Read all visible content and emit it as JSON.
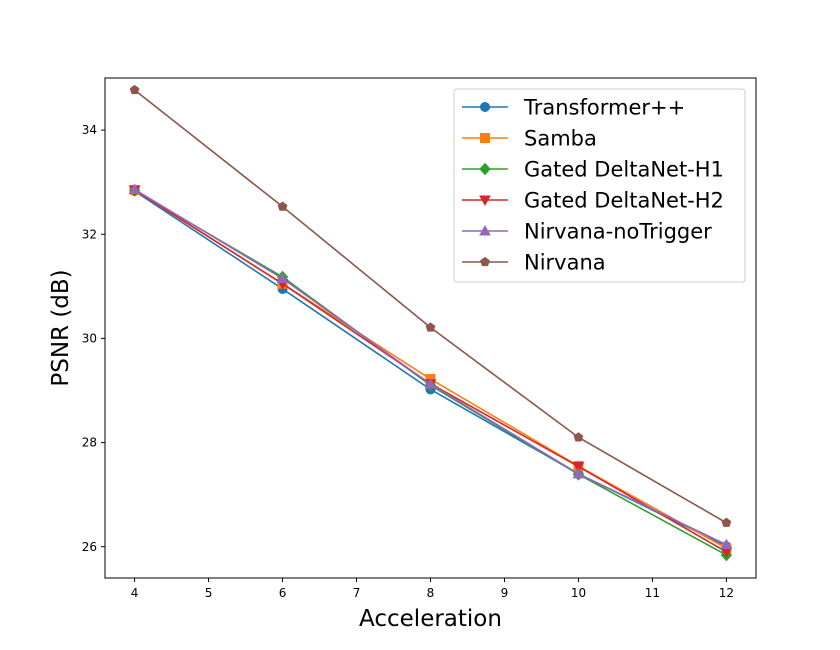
{
  "chart_data": {
    "type": "line",
    "xlabel": "Acceleration",
    "ylabel": "PSNR (dB)",
    "xlim": [
      3.6,
      12.4
    ],
    "ylim": [
      25.4,
      35.0
    ],
    "xticks": [
      4,
      5,
      6,
      7,
      8,
      9,
      10,
      11,
      12
    ],
    "yticks": [
      26,
      28,
      30,
      32,
      34
    ],
    "grid": false,
    "legend_placement": "top-right",
    "x": [
      4,
      6,
      8,
      10,
      12
    ],
    "series": [
      {
        "name": "Transformer++",
        "color": "#1f77b4",
        "marker": "circle",
        "values": [
          32.83,
          30.95,
          29.02,
          27.4,
          26.01
        ]
      },
      {
        "name": "Samba",
        "color": "#ff7f0e",
        "marker": "square",
        "values": [
          32.85,
          31.05,
          29.22,
          27.55,
          25.97
        ]
      },
      {
        "name": "Gated DeltaNet-H1",
        "color": "#2ca02c",
        "marker": "diamond",
        "values": [
          32.84,
          31.18,
          29.1,
          27.39,
          25.84
        ]
      },
      {
        "name": "Gated DeltaNet-H2",
        "color": "#d62728",
        "marker": "triangle-down",
        "values": [
          32.85,
          31.05,
          29.13,
          27.54,
          25.9
        ]
      },
      {
        "name": "Nirvana-noTrigger",
        "color": "#9467bd",
        "marker": "triangle-up",
        "values": [
          32.86,
          31.15,
          29.12,
          27.4,
          26.04
        ]
      },
      {
        "name": "Nirvana",
        "color": "#8c564b",
        "marker": "pentagon",
        "values": [
          34.77,
          32.53,
          30.21,
          28.1,
          26.46
        ]
      }
    ]
  }
}
